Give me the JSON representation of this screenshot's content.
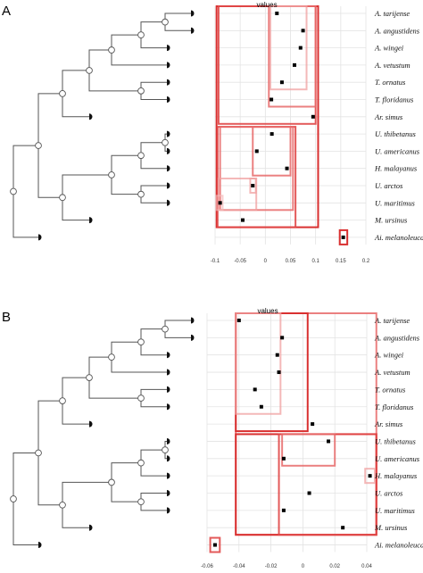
{
  "panels": [
    {
      "label": "A",
      "axis_title": "values",
      "species": [
        "A. tarijense",
        "A. angustidens",
        "A. wingei",
        "A. vetustum",
        "T. ornatus",
        "T. floridanus",
        "Ar. simus",
        "U. thibetanus",
        "U. americanus",
        "H. malayanus",
        "U. arctos",
        "U. maritimus",
        "M. ursinus",
        "Ai. melanoleuca"
      ],
      "chart_data": {
        "type": "scatter",
        "axis_title": "values",
        "xlim": [
          -0.1,
          0.2
        ],
        "xticks": [
          -0.1,
          -0.05,
          0,
          0.05,
          0.1,
          0.15,
          0.2
        ],
        "xtick_labels": [
          "-0.1",
          "-0.05",
          "0",
          "0.05",
          "0.1",
          "0.15",
          "0.2"
        ],
        "categories": [
          "A. tarijense",
          "A. angustidens",
          "A. wingei",
          "A. vetustum",
          "T. ornatus",
          "T. floridanus",
          "Ar. simus",
          "U. thibetanus",
          "U. americanus",
          "H. malayanus",
          "U. arctos",
          "U. maritimus",
          "M. ursinus",
          "Ai. melanoleuca"
        ],
        "values": [
          0.023,
          0.075,
          0.07,
          0.058,
          0.033,
          0.012,
          0.095,
          0.013,
          -0.017,
          0.043,
          -0.025,
          -0.09,
          -0.045,
          0.155
        ],
        "boxes": [
          {
            "xmin": -0.097,
            "xmax": 0.105,
            "from": 0,
            "to": 12,
            "color": "#d93030",
            "opacity": 1.0
          },
          {
            "xmin": -0.093,
            "xmax": 0.1,
            "from": 0,
            "to": 6,
            "color": "#e04848",
            "opacity": 0.9
          },
          {
            "xmin": 0.007,
            "xmax": 0.1,
            "from": 0,
            "to": 5,
            "color": "#e86a6a",
            "opacity": 0.85
          },
          {
            "xmin": 0.01,
            "xmax": 0.082,
            "from": 0,
            "to": 4,
            "color": "#f0a0a0",
            "opacity": 0.75
          },
          {
            "xmin": -0.095,
            "xmax": 0.06,
            "from": 7,
            "to": 12,
            "color": "#e04848",
            "opacity": 0.9
          },
          {
            "xmin": -0.09,
            "xmax": 0.055,
            "from": 7,
            "to": 11,
            "color": "#e86a6a",
            "opacity": 0.85
          },
          {
            "xmin": -0.025,
            "xmax": 0.05,
            "from": 7,
            "to": 9,
            "color": "#e86a6a",
            "opacity": 0.85
          },
          {
            "xmin": -0.093,
            "xmax": -0.018,
            "from": 10,
            "to": 11,
            "color": "#f0a0a0",
            "opacity": 0.75
          },
          {
            "xmin": -0.03,
            "xmax": -0.019,
            "from": 10,
            "to": 10,
            "color": "#f0a0a0",
            "opacity": 0.75
          },
          {
            "xmin": -0.097,
            "xmax": -0.085,
            "from": 11,
            "to": 11,
            "color": "#f4b8b8",
            "opacity": 0.7
          },
          {
            "xmin": 0.148,
            "xmax": 0.163,
            "from": 13,
            "to": 13,
            "color": "#d93030",
            "opacity": 1.0
          }
        ],
        "grid": true
      }
    },
    {
      "label": "B",
      "axis_title": "values",
      "species": [
        "A. tarijense",
        "A. angustidens",
        "A. wingei",
        "A. vetustum",
        "T. ornatus",
        "T. floridanus",
        "Ar. simus",
        "U. thibetanus",
        "U. americanus",
        "H. malayanus",
        "U. arctos",
        "U. maritimus",
        "M. ursinus",
        "Ai. melanoleuca"
      ],
      "chart_data": {
        "type": "scatter",
        "axis_title": "values",
        "xlim": [
          -0.06,
          0.04
        ],
        "xticks": [
          -0.06,
          -0.04,
          -0.02,
          0,
          0.02,
          0.04
        ],
        "xtick_labels": [
          "-0.06",
          "-0.04",
          "-0.02",
          "0",
          "0.02",
          "0.04"
        ],
        "categories": [
          "A. tarijense",
          "A. angustidens",
          "A. wingei",
          "A. vetustum",
          "T. ornatus",
          "T. floridanus",
          "Ar. simus",
          "U. thibetanus",
          "U. americanus",
          "H. malayanus",
          "U. arctos",
          "U. maritimus",
          "M. ursinus",
          "Ai. melanoleuca"
        ],
        "values": [
          -0.04,
          -0.013,
          -0.016,
          -0.015,
          -0.03,
          -0.026,
          0.006,
          0.016,
          -0.012,
          0.042,
          0.004,
          -0.012,
          0.025,
          -0.055
        ],
        "boxes": [
          {
            "xmin": -0.042,
            "xmax": 0.046,
            "from": 0,
            "to": 12,
            "color": "#e86a6a",
            "opacity": 0.85
          },
          {
            "xmin": -0.042,
            "xmax": 0.003,
            "from": 0,
            "to": 6,
            "color": "#d93030",
            "opacity": 1.0
          },
          {
            "xmin": -0.042,
            "xmax": -0.014,
            "from": 0,
            "to": 5,
            "color": "#f0a0a0",
            "opacity": 0.75
          },
          {
            "xmin": -0.042,
            "xmax": 0.046,
            "from": 7,
            "to": 12,
            "color": "#d93030",
            "opacity": 1.0
          },
          {
            "xmin": -0.015,
            "xmax": 0.046,
            "from": 7,
            "to": 12,
            "color": "#e04848",
            "opacity": 0.9
          },
          {
            "xmin": -0.013,
            "xmax": 0.02,
            "from": 7,
            "to": 8,
            "color": "#e86a6a",
            "opacity": 0.85
          },
          {
            "xmin": 0.039,
            "xmax": 0.045,
            "from": 9,
            "to": 9,
            "color": "#f0a0a0",
            "opacity": 0.75
          },
          {
            "xmin": -0.058,
            "xmax": -0.052,
            "from": 13,
            "to": 13,
            "color": "#e04848",
            "opacity": 0.9
          }
        ],
        "grid": true
      }
    }
  ]
}
